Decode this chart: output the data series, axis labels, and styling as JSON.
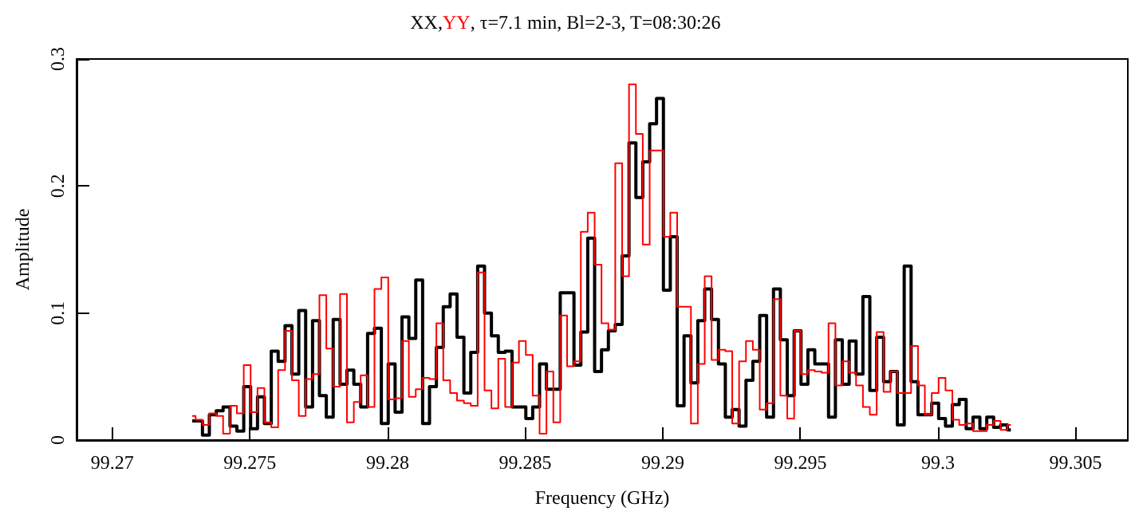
{
  "chart_data": {
    "type": "step",
    "title": ", τ=7.1 min, Bl=2-3, T=08:30:26",
    "xlabel": "Frequency (GHz)",
    "ylabel": "Amplitude",
    "legend": "top",
    "x": [
      99.2729,
      99.27315,
      99.2734,
      99.27365,
      99.2739,
      99.27415,
      99.2744,
      99.27465,
      99.2749,
      99.27515,
      99.2754,
      99.27565,
      99.2759,
      99.27615,
      99.2764,
      99.27665,
      99.2769,
      99.27715,
      99.2774,
      99.27765,
      99.2779,
      99.27815,
      99.2784,
      99.27865,
      99.2789,
      99.27915,
      99.2794,
      99.27965,
      99.2799,
      99.28015,
      99.2804,
      99.28065,
      99.2809,
      99.28115,
      99.2814,
      99.28165,
      99.2819,
      99.28215,
      99.2824,
      99.28265,
      99.2829,
      99.28315,
      99.2834,
      99.28365,
      99.2839,
      99.28415,
      99.2844,
      99.28465,
      99.2849,
      99.28515,
      99.2854,
      99.28565,
      99.2859,
      99.28615,
      99.2864,
      99.28665,
      99.2869,
      99.28715,
      99.2874,
      99.28765,
      99.2879,
      99.28815,
      99.2884,
      99.28865,
      99.2889,
      99.28915,
      99.2894,
      99.28965,
      99.2899,
      99.29015,
      99.2904,
      99.29065,
      99.2909,
      99.29115,
      99.2914,
      99.29165,
      99.2919,
      99.29215,
      99.2924,
      99.29265,
      99.2929,
      99.29315,
      99.2934,
      99.29365,
      99.2939,
      99.29415,
      99.2944,
      99.29465,
      99.2949,
      99.29515,
      99.2954,
      99.29565,
      99.2959,
      99.29615,
      99.2964,
      99.29665,
      99.2969,
      99.29715,
      99.2974,
      99.29765,
      99.2979,
      99.29815,
      99.2984,
      99.29865,
      99.2989,
      99.29915,
      99.2994,
      99.29965,
      99.2999,
      99.30015,
      99.3004,
      99.30065,
      99.3009,
      99.30115,
      99.3014,
      99.30165,
      99.3019,
      99.30215,
      99.3024,
      99.30265
    ],
    "series": [
      {
        "name": "XX,",
        "color": "#000000",
        "values": [
          0.015,
          0.015,
          0.004,
          0.02,
          0.023,
          0.026,
          0.011,
          0.007,
          0.042,
          0.009,
          0.034,
          0.013,
          0.07,
          0.062,
          0.09,
          0.052,
          0.102,
          0.026,
          0.094,
          0.035,
          0.018,
          0.095,
          0.044,
          0.055,
          0.044,
          0.026,
          0.084,
          0.088,
          0.013,
          0.06,
          0.022,
          0.097,
          0.08,
          0.126,
          0.013,
          0.042,
          0.073,
          0.105,
          0.115,
          0.081,
          0.037,
          0.069,
          0.137,
          0.1,
          0.082,
          0.069,
          0.07,
          0.026,
          0.026,
          0.017,
          0.026,
          0.06,
          0.04,
          0.04,
          0.116,
          0.116,
          0.059,
          0.085,
          0.159,
          0.054,
          0.071,
          0.086,
          0.091,
          0.145,
          0.234,
          0.191,
          0.219,
          0.249,
          0.269,
          0.118,
          0.16,
          0.027,
          0.082,
          0.045,
          0.094,
          0.119,
          0.095,
          0.06,
          0.018,
          0.024,
          0.011,
          0.047,
          0.062,
          0.098,
          0.018,
          0.119,
          0.079,
          0.035,
          0.086,
          0.044,
          0.071,
          0.06,
          0.06,
          0.018,
          0.079,
          0.044,
          0.078,
          0.052,
          0.113,
          0.039,
          0.081,
          0.046,
          0.054,
          0.012,
          0.137,
          0.046,
          0.02,
          0.02,
          0.029,
          0.017,
          0.011,
          0.028,
          0.032,
          0.009,
          0.018,
          0.009,
          0.018,
          0.01,
          0.012,
          0.008
        ]
      },
      {
        "name": "YY",
        "color": "#ff0000",
        "values": [
          0.019,
          0.016,
          0.012,
          0.021,
          0.019,
          0.005,
          0.027,
          0.021,
          0.059,
          0.022,
          0.041,
          0.014,
          0.01,
          0.055,
          0.086,
          0.047,
          0.019,
          0.048,
          0.052,
          0.114,
          0.072,
          0.042,
          0.115,
          0.014,
          0.03,
          0.051,
          0.026,
          0.119,
          0.128,
          0.032,
          0.033,
          0.078,
          0.034,
          0.04,
          0.049,
          0.048,
          0.092,
          0.047,
          0.037,
          0.031,
          0.029,
          0.027,
          0.132,
          0.039,
          0.025,
          0.064,
          0.026,
          0.061,
          0.078,
          0.067,
          0.035,
          0.005,
          0.054,
          0.014,
          0.098,
          0.058,
          0.062,
          0.164,
          0.179,
          0.138,
          0.092,
          0.087,
          0.218,
          0.129,
          0.28,
          0.241,
          0.154,
          0.228,
          0.228,
          0.16,
          0.179,
          0.105,
          0.105,
          0.013,
          0.06,
          0.129,
          0.063,
          0.071,
          0.07,
          0.013,
          0.062,
          0.078,
          0.071,
          0.024,
          0.029,
          0.111,
          0.035,
          0.017,
          0.086,
          0.052,
          0.055,
          0.054,
          0.053,
          0.092,
          0.043,
          0.062,
          0.053,
          0.043,
          0.026,
          0.02,
          0.085,
          0.038,
          0.054,
          0.037,
          0.037,
          0.074,
          0.043,
          0.02,
          0.037,
          0.049,
          0.039,
          0.016,
          0.012,
          0.013,
          0.007,
          0.007,
          0.012,
          0.015,
          0.008,
          0.012
        ]
      }
    ],
    "xlim": [
      99.2687,
      99.3069
    ],
    "xticks": [
      99.27,
      99.275,
      99.28,
      99.285,
      99.29,
      99.295,
      99.3,
      99.305
    ],
    "ylim": [
      0,
      0.3
    ],
    "yticks": [
      0,
      0.1,
      0.2,
      0.3
    ],
    "grid": false
  }
}
